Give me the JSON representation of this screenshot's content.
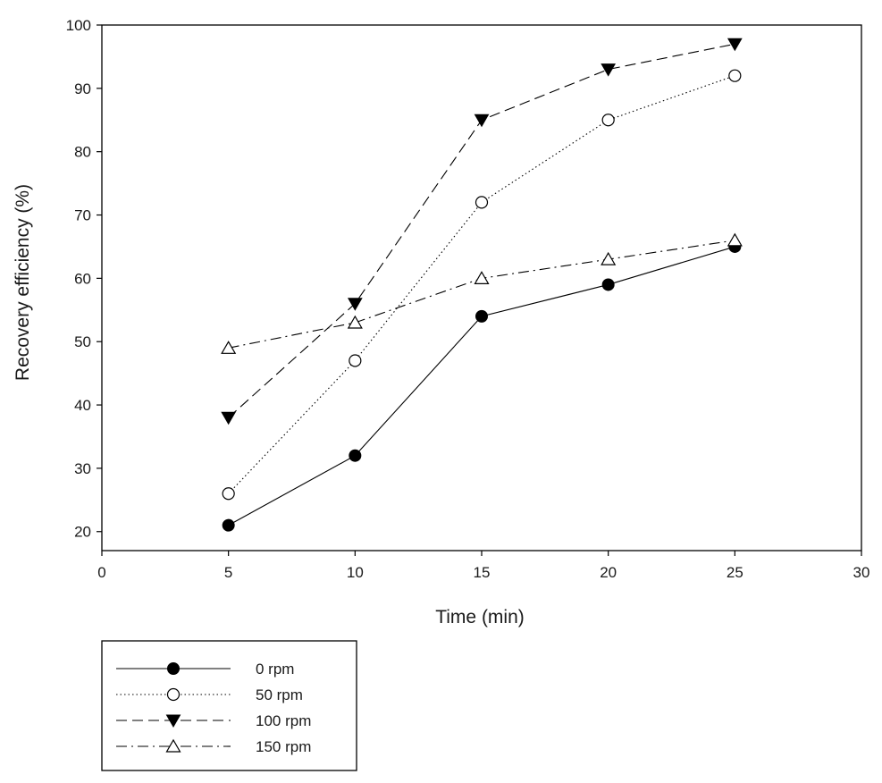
{
  "chart_data": {
    "type": "line",
    "title": "",
    "xlabel": "Time (min)",
    "ylabel": "Recovery efficiency (%)",
    "xlim": [
      0,
      30
    ],
    "ylim": [
      17,
      100
    ],
    "xticks": [
      0,
      5,
      10,
      15,
      20,
      25,
      30
    ],
    "yticks": [
      20,
      30,
      40,
      50,
      60,
      70,
      80,
      90,
      100
    ],
    "grid": false,
    "legend_position": "below",
    "x": [
      5,
      10,
      15,
      20,
      25
    ],
    "series": [
      {
        "name": "0 rpm",
        "values": [
          21,
          32,
          54,
          59,
          65
        ],
        "marker": "circle-filled",
        "linestyle": "solid"
      },
      {
        "name": "50 rpm",
        "values": [
          26,
          47,
          72,
          85,
          92
        ],
        "marker": "circle-open",
        "linestyle": "dotted"
      },
      {
        "name": "100 rpm",
        "values": [
          38,
          56,
          85,
          93,
          97
        ],
        "marker": "triangle-down-filled",
        "linestyle": "dashed"
      },
      {
        "name": "150 rpm",
        "values": [
          49,
          53,
          60,
          63,
          66
        ],
        "marker": "triangle-up-open",
        "linestyle": "dashdot"
      }
    ]
  }
}
